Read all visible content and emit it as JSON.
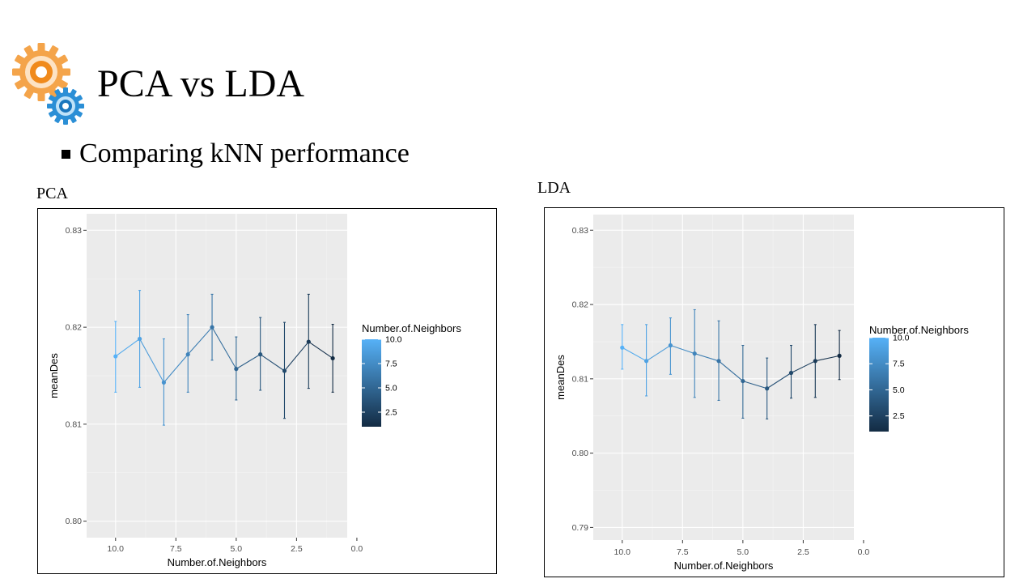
{
  "slide": {
    "title": "PCA vs LDA",
    "bullet": "Comparing kNN performance"
  },
  "colors": {
    "gear_large": "#f4a44a",
    "gear_small": "#2b8fd6",
    "gradient_low": "#132b43",
    "gradient_high": "#56b1f7",
    "panel_background": "#ebebeb"
  },
  "chart_data": [
    {
      "type": "line",
      "panel_label": "PCA",
      "xlabel": "Number.of.Neighbors",
      "ylabel": "meanDes",
      "x_reversed": true,
      "xlim": [
        0.4,
        11.2
      ],
      "ylim": [
        0.7983,
        0.8317
      ],
      "x_ticks": [
        10.0,
        7.5,
        5.0,
        2.5,
        0.0
      ],
      "x_tick_labels": [
        "10.0",
        "7.5",
        "5.0",
        "2.5",
        "0.0"
      ],
      "y_ticks": [
        0.8,
        0.81,
        0.82,
        0.83
      ],
      "y_tick_labels": [
        "0.80",
        "0.81",
        "0.82",
        "0.83"
      ],
      "x": [
        10,
        9,
        8,
        7,
        6,
        5,
        4,
        3,
        2,
        1
      ],
      "y": [
        0.817,
        0.8188,
        0.8143,
        0.8172,
        0.82,
        0.8157,
        0.8172,
        0.8155,
        0.8185,
        0.8168
      ],
      "ymin": [
        0.8133,
        0.8138,
        0.8099,
        0.8133,
        0.8166,
        0.8125,
        0.8135,
        0.8106,
        0.8137,
        0.8133
      ],
      "ymax": [
        0.8206,
        0.8238,
        0.8188,
        0.8213,
        0.8234,
        0.819,
        0.821,
        0.8205,
        0.8234,
        0.8203
      ],
      "grid": true,
      "legend": {
        "title": "Number.of.Neighbors",
        "placement": "right",
        "range": [
          1,
          10
        ],
        "labels": [
          "10.0",
          "7.5",
          "5.0",
          "2.5"
        ],
        "values": [
          10.0,
          7.5,
          5.0,
          2.5
        ]
      }
    },
    {
      "type": "line",
      "panel_label": "LDA",
      "xlabel": "Number.of.Neighbors",
      "ylabel": "meanDes",
      "x_reversed": true,
      "xlim": [
        0.4,
        11.2
      ],
      "ylim": [
        0.7883,
        0.8321
      ],
      "x_ticks": [
        10.0,
        7.5,
        5.0,
        2.5,
        0.0
      ],
      "x_tick_labels": [
        "10.0",
        "7.5",
        "5.0",
        "2.5",
        "0.0"
      ],
      "y_ticks": [
        0.79,
        0.8,
        0.81,
        0.82,
        0.83
      ],
      "y_tick_labels": [
        "0.79",
        "0.80",
        "0.81",
        "0.82",
        "0.83"
      ],
      "x": [
        10,
        9,
        8,
        7,
        6,
        5,
        4,
        3,
        2,
        1
      ],
      "y": [
        0.8142,
        0.8124,
        0.8145,
        0.8134,
        0.8124,
        0.8097,
        0.8087,
        0.8108,
        0.8124,
        0.8131
      ],
      "ymin": [
        0.8113,
        0.8077,
        0.8106,
        0.8075,
        0.8071,
        0.8047,
        0.8046,
        0.8074,
        0.8075,
        0.8099
      ],
      "ymax": [
        0.8173,
        0.8173,
        0.8182,
        0.8193,
        0.8178,
        0.8145,
        0.8128,
        0.8145,
        0.8173,
        0.8165
      ],
      "grid": true,
      "legend": {
        "title": "Number.of.Neighbors",
        "placement": "right",
        "range": [
          1,
          10
        ],
        "labels": [
          "10.0",
          "7.5",
          "5.0",
          "2.5"
        ],
        "values": [
          10.0,
          7.5,
          5.0,
          2.5
        ]
      }
    }
  ]
}
